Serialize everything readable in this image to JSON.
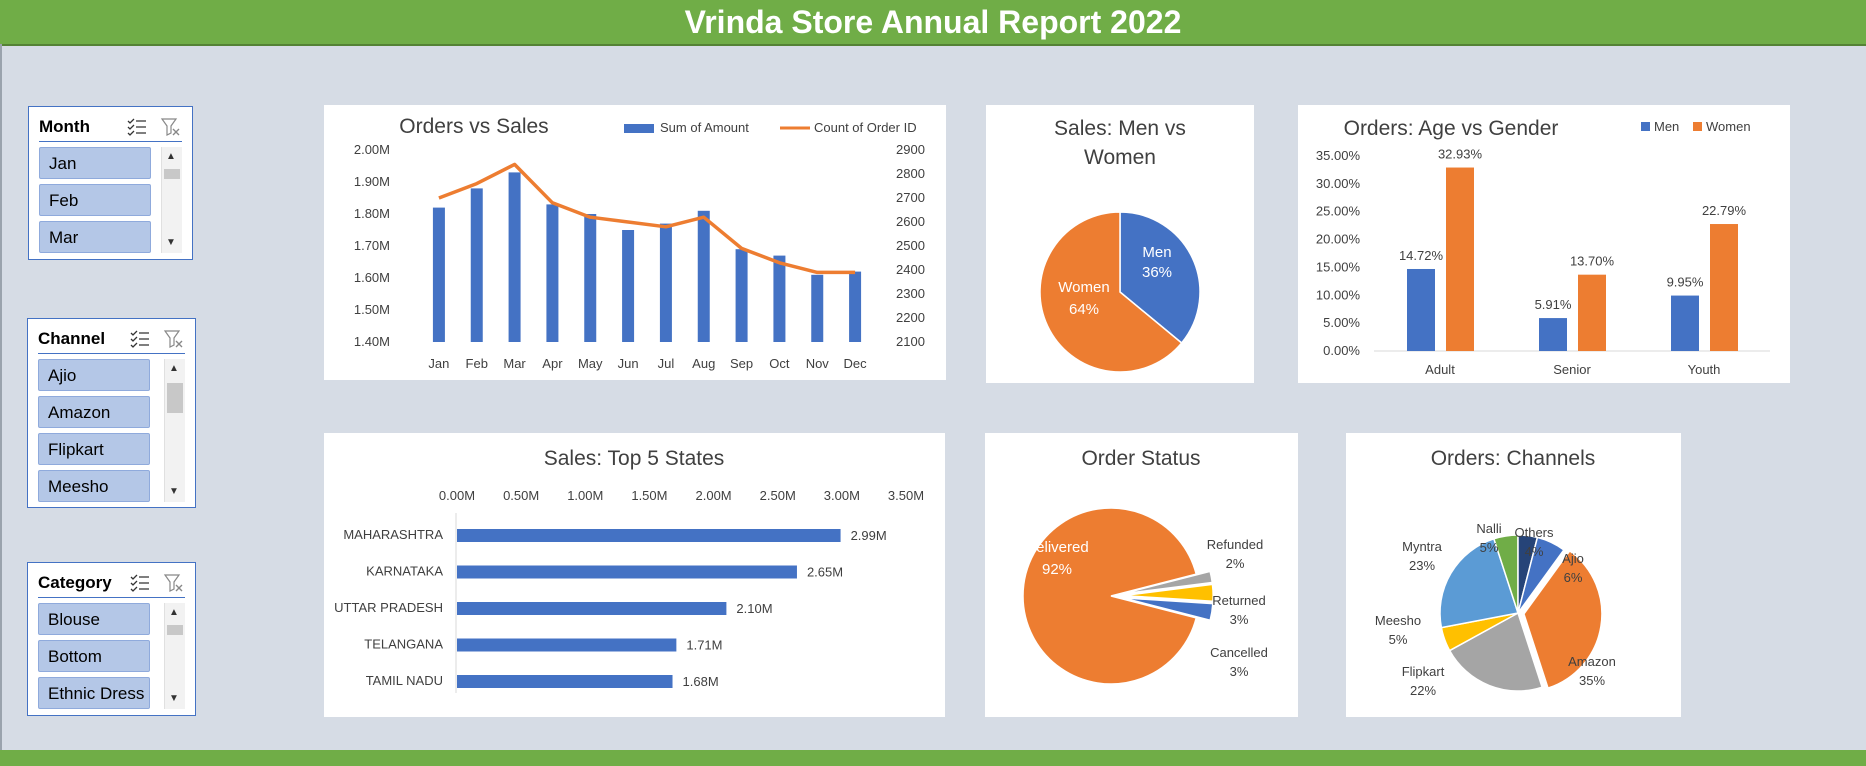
{
  "header": {
    "title": "Vrinda Store Annual Report 2022"
  },
  "colors": {
    "header_bg": "#70ad47",
    "blue": "#4472c4",
    "orange": "#ed7d31",
    "gray": "#a5a5a5",
    "yellow": "#ffc000",
    "lightblue": "#5b9bd5",
    "green": "#70ad47",
    "navy": "#264478",
    "slicer_item": "#b4c7e7"
  },
  "slicers": [
    {
      "title": "Month",
      "items": [
        "Jan",
        "Feb",
        "Mar"
      ]
    },
    {
      "title": "Channel",
      "items": [
        "Ajio",
        "Amazon",
        "Flipkart",
        "Meesho"
      ]
    },
    {
      "title": "Category",
      "items": [
        "Blouse",
        "Bottom",
        "Ethnic Dress"
      ]
    }
  ],
  "chart_data": [
    {
      "id": "orders_vs_sales",
      "type": "bar",
      "title": "Orders vs Sales",
      "categories": [
        "Jan",
        "Feb",
        "Mar",
        "Apr",
        "May",
        "Jun",
        "Jul",
        "Aug",
        "Sep",
        "Oct",
        "Nov",
        "Dec"
      ],
      "series": [
        {
          "name": "Sum of Amount",
          "type": "bar",
          "axis": "left",
          "values": [
            1.82,
            1.88,
            1.93,
            1.83,
            1.8,
            1.75,
            1.77,
            1.81,
            1.69,
            1.67,
            1.61,
            1.62
          ]
        },
        {
          "name": "Count of Order ID",
          "type": "line",
          "axis": "right",
          "values": [
            2700,
            2760,
            2840,
            2680,
            2620,
            2600,
            2580,
            2620,
            2490,
            2430,
            2390,
            2390
          ]
        }
      ],
      "y_left": {
        "min": 1.4,
        "max": 2.0,
        "ticks": [
          "1.40M",
          "1.50M",
          "1.60M",
          "1.70M",
          "1.80M",
          "1.90M",
          "2.00M"
        ]
      },
      "y_right": {
        "min": 2100,
        "max": 2900,
        "ticks": [
          "2100",
          "2200",
          "2300",
          "2400",
          "2500",
          "2600",
          "2700",
          "2800",
          "2900"
        ]
      },
      "legend": "top-right"
    },
    {
      "id": "sales_men_women",
      "type": "pie",
      "title_lines": [
        "Sales: Men vs",
        "Women"
      ],
      "slices": [
        {
          "name": "Men",
          "value": 36,
          "label": "36%"
        },
        {
          "name": "Women",
          "value": 64,
          "label": "64%"
        }
      ]
    },
    {
      "id": "orders_age_gender",
      "type": "bar",
      "title": "Orders: Age vs Gender",
      "categories": [
        "Adult",
        "Senior",
        "Youth"
      ],
      "series": [
        {
          "name": "Men",
          "values": [
            14.72,
            5.91,
            9.95
          ],
          "labels": [
            "14.72%",
            "5.91%",
            "9.95%"
          ]
        },
        {
          "name": "Women",
          "values": [
            32.93,
            13.7,
            22.79
          ],
          "labels": [
            "32.93%",
            "13.70%",
            "22.79%"
          ]
        }
      ],
      "ylim": [
        0,
        35
      ],
      "ticks": [
        "0.00%",
        "5.00%",
        "10.00%",
        "15.00%",
        "20.00%",
        "25.00%",
        "30.00%",
        "35.00%"
      ],
      "legend": "top-right"
    },
    {
      "id": "top5_states",
      "type": "bar",
      "orientation": "horizontal",
      "title": "Sales: Top 5 States",
      "categories": [
        "MAHARASHTRA",
        "KARNATAKA",
        "UTTAR PRADESH",
        "TELANGANA",
        "TAMIL NADU"
      ],
      "values": [
        2.99,
        2.65,
        2.1,
        1.71,
        1.68
      ],
      "labels": [
        "2.99M",
        "2.65M",
        "2.10M",
        "1.71M",
        "1.68M"
      ],
      "xlim": [
        0,
        3.5
      ],
      "ticks": [
        "0.00M",
        "0.50M",
        "1.00M",
        "1.50M",
        "2.00M",
        "2.50M",
        "3.00M",
        "3.50M"
      ]
    },
    {
      "id": "order_status",
      "type": "pie",
      "title": "Order Status",
      "slices": [
        {
          "name": "Delivered",
          "value": 92,
          "label": "92%"
        },
        {
          "name": "Refunded",
          "value": 2,
          "label": "2%"
        },
        {
          "name": "Returned",
          "value": 3,
          "label": "3%"
        },
        {
          "name": "Cancelled",
          "value": 3,
          "label": "3%"
        }
      ]
    },
    {
      "id": "orders_channels",
      "type": "pie",
      "title": "Orders: Channels",
      "slices": [
        {
          "name": "Amazon",
          "value": 35,
          "label": "35%"
        },
        {
          "name": "Flipkart",
          "value": 22,
          "label": "22%"
        },
        {
          "name": "Meesho",
          "value": 5,
          "label": "5%"
        },
        {
          "name": "Myntra",
          "value": 23,
          "label": "23%"
        },
        {
          "name": "Nalli",
          "value": 5,
          "label": "5%"
        },
        {
          "name": "Others",
          "value": 4,
          "label": "4%"
        },
        {
          "name": "Ajio",
          "value": 6,
          "label": "6%"
        }
      ]
    }
  ]
}
